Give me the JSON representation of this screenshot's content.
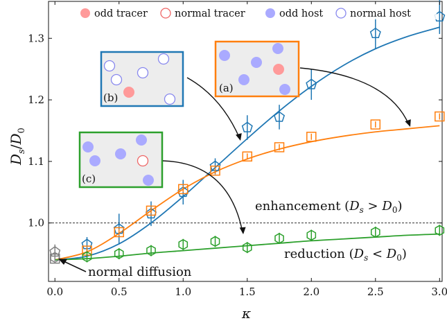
{
  "chart_data": {
    "type": "scatter",
    "xlabel": "κ",
    "ylabel_main": "D",
    "ylabel_sub_s": "s",
    "ylabel_sub_0": "0",
    "xlim": [
      -0.05,
      3.02
    ],
    "ylim": [
      0.905,
      1.36
    ],
    "xticks": [
      0.0,
      0.5,
      1.0,
      1.5,
      2.0,
      2.5,
      3.0
    ],
    "yticks": [
      1.0,
      1.1,
      1.2,
      1.3
    ],
    "xtick_labels": [
      "0.0",
      "0.5",
      "1.0",
      "1.5",
      "2.0",
      "2.5",
      "3.0"
    ],
    "ytick_labels": [
      "1.0",
      "1.1",
      "1.2",
      "1.3"
    ],
    "reference_line": 1.0,
    "colors": {
      "blue": "#1f77b4",
      "orange": "#ff7f0e",
      "green": "#2ca02c",
      "gray": "#808080"
    },
    "series": [
      {
        "id": "b",
        "color": "#1f77b4",
        "marker": "pentagon",
        "x": [
          0.25,
          0.5,
          0.75,
          1.0,
          1.25,
          1.5,
          1.75,
          2.0,
          2.5,
          3.0
        ],
        "y": [
          0.965,
          0.99,
          1.015,
          1.05,
          1.092,
          1.155,
          1.172,
          1.225,
          1.308,
          1.335
        ],
        "err": [
          0.012,
          0.025,
          0.02,
          0.02,
          0.013,
          0.02,
          0.02,
          0.025,
          0.025,
          0.028
        ],
        "fit": [
          [
            0,
            0.94
          ],
          [
            0.25,
            0.946
          ],
          [
            0.5,
            0.966
          ],
          [
            0.75,
            1.0
          ],
          [
            1.0,
            1.043
          ],
          [
            1.25,
            1.09
          ],
          [
            1.5,
            1.137
          ],
          [
            1.75,
            1.182
          ],
          [
            2.0,
            1.222
          ],
          [
            2.25,
            1.256
          ],
          [
            2.5,
            1.283
          ],
          [
            2.75,
            1.303
          ],
          [
            3.0,
            1.318
          ]
        ]
      },
      {
        "id": "a",
        "color": "#ff7f0e",
        "marker": "square",
        "x": [
          0.25,
          0.5,
          0.75,
          1.0,
          1.25,
          1.5,
          1.75,
          2.0,
          2.5,
          3.0
        ],
        "y": [
          0.955,
          0.985,
          1.02,
          1.055,
          1.085,
          1.108,
          1.123,
          1.14,
          1.16,
          1.173
        ],
        "err": [
          0.005,
          0.005,
          0.005,
          0.005,
          0.005,
          0.005,
          0.005,
          0.005,
          0.005,
          0.005
        ],
        "fit": [
          [
            0,
            0.94
          ],
          [
            0.25,
            0.953
          ],
          [
            0.5,
            0.983
          ],
          [
            0.75,
            1.02
          ],
          [
            1.0,
            1.055
          ],
          [
            1.25,
            1.083
          ],
          [
            1.5,
            1.104
          ],
          [
            1.75,
            1.12
          ],
          [
            2.0,
            1.132
          ],
          [
            2.25,
            1.141
          ],
          [
            2.5,
            1.148
          ],
          [
            2.75,
            1.153
          ],
          [
            3.0,
            1.158
          ]
        ]
      },
      {
        "id": "c",
        "color": "#2ca02c",
        "marker": "hexagon",
        "x": [
          0.25,
          0.5,
          0.75,
          1.0,
          1.25,
          1.5,
          1.75,
          2.0,
          2.5,
          3.0
        ],
        "y": [
          0.945,
          0.95,
          0.955,
          0.965,
          0.97,
          0.96,
          0.975,
          0.98,
          0.985,
          0.988
        ],
        "err": [
          0.009,
          0.009,
          0.009,
          0.009,
          0.009,
          0.009,
          0.009,
          0.009,
          0.009,
          0.009
        ],
        "fit": [
          [
            0,
            0.94
          ],
          [
            0.25,
            0.942
          ],
          [
            0.5,
            0.946
          ],
          [
            0.75,
            0.951
          ],
          [
            1.0,
            0.955
          ],
          [
            1.25,
            0.959
          ],
          [
            1.5,
            0.963
          ],
          [
            1.75,
            0.967
          ],
          [
            2.0,
            0.971
          ],
          [
            2.25,
            0.974
          ],
          [
            2.5,
            0.977
          ],
          [
            2.75,
            0.98
          ],
          [
            3.0,
            0.982
          ]
        ]
      }
    ],
    "kappa_zero_points": [
      {
        "marker": "pentagon",
        "color": "#808080",
        "y": 0.953,
        "err": 0.012
      },
      {
        "marker": "hexagon",
        "color": "#808080",
        "y": 0.944,
        "err": 0.006
      },
      {
        "marker": "square",
        "color": "#808080",
        "y": 0.942,
        "err": 0.004
      }
    ],
    "legend": {
      "placement": "top",
      "entries": [
        {
          "label": "odd tracer",
          "style": "filled",
          "color": "#ff9a9a"
        },
        {
          "label": "normal tracer",
          "style": "hollow",
          "color": "#e66"
        },
        {
          "label": "odd host",
          "style": "filled",
          "color": "#aaaaff"
        },
        {
          "label": "normal host",
          "style": "hollow",
          "color": "#8888ee"
        }
      ]
    },
    "annotations": {
      "enhancement_word": "enhancement",
      "reduction_word": "reduction",
      "enhancement_cond_gt": ">",
      "reduction_cond_lt": "<",
      "normal_diffusion": "normal diffusion"
    },
    "insets": [
      {
        "tag": "(a)",
        "border": "#ff7f0e"
      },
      {
        "tag": "(b)",
        "border": "#1f77b4"
      },
      {
        "tag": "(c)",
        "border": "#2ca02c"
      }
    ]
  }
}
